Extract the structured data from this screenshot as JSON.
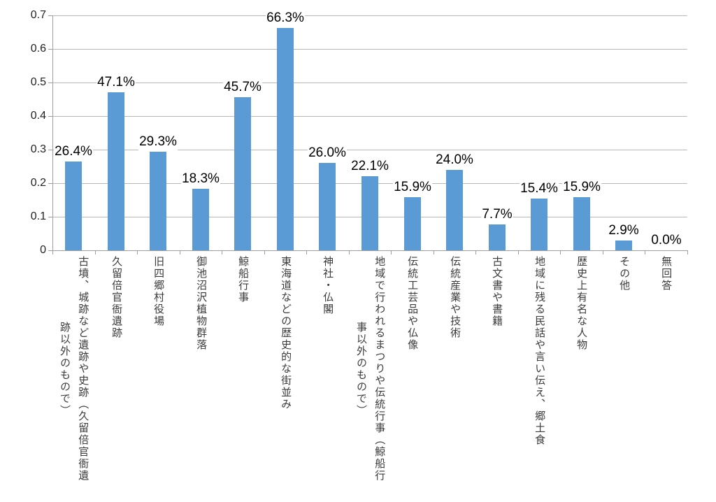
{
  "colors": {
    "bar": "#5B9BD5",
    "gridline": "#B7B7B7",
    "axis": "#9E9E9E",
    "value_label": "#000000",
    "category_label": "#3B3B3B"
  },
  "chart_data": {
    "type": "bar",
    "title": "",
    "xlabel": "",
    "ylabel": "",
    "ylim": [
      0,
      0.7
    ],
    "grid": true,
    "legend": false,
    "y_ticks": [
      "0",
      "0.1",
      "0.2",
      "0.3",
      "0.4",
      "0.5",
      "0.6",
      "0.7"
    ],
    "categories": [
      "古墳、城跡など遺跡や史跡（久留倍官衙遺跡以外のもので）",
      "久留倍官衙遺跡",
      "旧四郷村役場",
      "御池沼沢植物群落",
      "鯨船行事",
      "東海道などの歴史的な街並み",
      "神社・仏閣",
      "地域で行われるまつりや伝統行事（鯨船行事以外のもので）",
      "伝統工芸品や仏像",
      "伝統産業や技術",
      "古文書や書籍",
      "地域に残る民話や言い伝え、郷土食",
      "歴史上有名な人物",
      "その他",
      "無回答"
    ],
    "categories_lines": [
      [
        "古墳、城跡など遺跡や史跡（久留倍官衙遺",
        "跡以外のもので）"
      ],
      [
        "久留倍官衙遺跡"
      ],
      [
        "旧四郷村役場"
      ],
      [
        "御池沼沢植物群落"
      ],
      [
        "鯨船行事"
      ],
      [
        "東海道などの歴史的な街並み"
      ],
      [
        "神社・仏閣"
      ],
      [
        "地域で行われるまつりや伝統行事（鯨船行",
        "事以外のもので）"
      ],
      [
        "伝統工芸品や仏像"
      ],
      [
        "伝統産業や技術"
      ],
      [
        "古文書や書籍"
      ],
      [
        "地域に残る民話や言い伝え、郷土食"
      ],
      [
        "歴史上有名な人物"
      ],
      [
        "その他"
      ],
      [
        "無回答"
      ]
    ],
    "values": [
      0.264,
      0.471,
      0.293,
      0.183,
      0.457,
      0.663,
      0.26,
      0.221,
      0.159,
      0.24,
      0.077,
      0.154,
      0.159,
      0.029,
      0.0
    ],
    "value_labels": [
      "26.4%",
      "47.1%",
      "29.3%",
      "18.3%",
      "45.7%",
      "66.3%",
      "26.0%",
      "22.1%",
      "15.9%",
      "24.0%",
      "7.7%",
      "15.4%",
      "15.9%",
      "2.9%",
      "0.0%"
    ]
  }
}
